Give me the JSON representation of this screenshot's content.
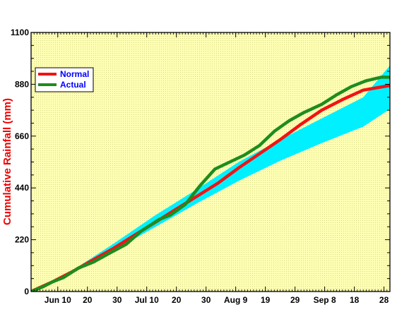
{
  "chart_data": {
    "type": "line",
    "title": "",
    "xlabel": "",
    "ylabel": "Cumulative Rainfall (mm)",
    "ylim": [
      0,
      1100
    ],
    "yticks": [
      0,
      220,
      440,
      660,
      880,
      1100
    ],
    "xlim": [
      "2022-06-01",
      "2022-09-30"
    ],
    "xticks": [
      {
        "date": "2022-06-10",
        "label": "Jun 10"
      },
      {
        "date": "2022-06-20",
        "label": "20"
      },
      {
        "date": "2022-06-30",
        "label": "30"
      },
      {
        "date": "2022-07-10",
        "label": "Jul 10"
      },
      {
        "date": "2022-07-20",
        "label": "20"
      },
      {
        "date": "2022-07-30",
        "label": "30"
      },
      {
        "date": "2022-08-09",
        "label": "Aug 9"
      },
      {
        "date": "2022-08-19",
        "label": "19"
      },
      {
        "date": "2022-08-29",
        "label": "29"
      },
      {
        "date": "2022-09-08",
        "label": "Sep 8"
      },
      {
        "date": "2022-09-18",
        "label": "18"
      },
      {
        "date": "2022-09-28",
        "label": "28"
      }
    ],
    "legend_position": "top-left",
    "colors": {
      "plot_bg": "#ffffb4",
      "band": "#00f0ff",
      "normal": "#f01414",
      "actual": "#1e8c1e",
      "ylabel": "#f00000",
      "legend_text": "#0000ff"
    },
    "band": {
      "name": "",
      "x": [
        "2022-06-01",
        "2022-06-15",
        "2022-06-29",
        "2022-07-13",
        "2022-07-27",
        "2022-08-10",
        "2022-08-24",
        "2022-09-07",
        "2022-09-21",
        "2022-09-30"
      ],
      "lower": [
        0,
        80,
        175,
        275,
        375,
        470,
        555,
        630,
        700,
        775
      ],
      "upper": [
        0,
        90,
        205,
        325,
        435,
        550,
        645,
        735,
        825,
        960
      ]
    },
    "series": [
      {
        "name": "Normal",
        "x": [
          "2022-06-01",
          "2022-06-08",
          "2022-06-15",
          "2022-06-22",
          "2022-06-29",
          "2022-07-06",
          "2022-07-13",
          "2022-07-20",
          "2022-07-27",
          "2022-08-03",
          "2022-08-10",
          "2022-08-17",
          "2022-08-24",
          "2022-08-31",
          "2022-09-07",
          "2022-09-14",
          "2022-09-21",
          "2022-09-30"
        ],
        "values": [
          0,
          40,
          85,
          135,
          185,
          240,
          295,
          350,
          405,
          460,
          525,
          585,
          645,
          710,
          770,
          815,
          855,
          875
        ]
      },
      {
        "name": "Actual",
        "x": [
          "2022-06-01",
          "2022-06-05",
          "2022-06-08",
          "2022-06-12",
          "2022-06-17",
          "2022-06-22",
          "2022-06-27",
          "2022-07-03",
          "2022-07-08",
          "2022-07-14",
          "2022-07-18",
          "2022-07-23",
          "2022-07-28",
          "2022-08-02",
          "2022-08-07",
          "2022-08-12",
          "2022-08-17",
          "2022-08-22",
          "2022-08-27",
          "2022-09-01",
          "2022-09-07",
          "2022-09-12",
          "2022-09-17",
          "2022-09-22",
          "2022-09-27",
          "2022-09-30"
        ],
        "values": [
          0,
          20,
          40,
          60,
          100,
          125,
          160,
          200,
          255,
          305,
          325,
          370,
          450,
          520,
          550,
          580,
          620,
          680,
          725,
          760,
          795,
          835,
          870,
          895,
          910,
          910
        ]
      }
    ]
  }
}
